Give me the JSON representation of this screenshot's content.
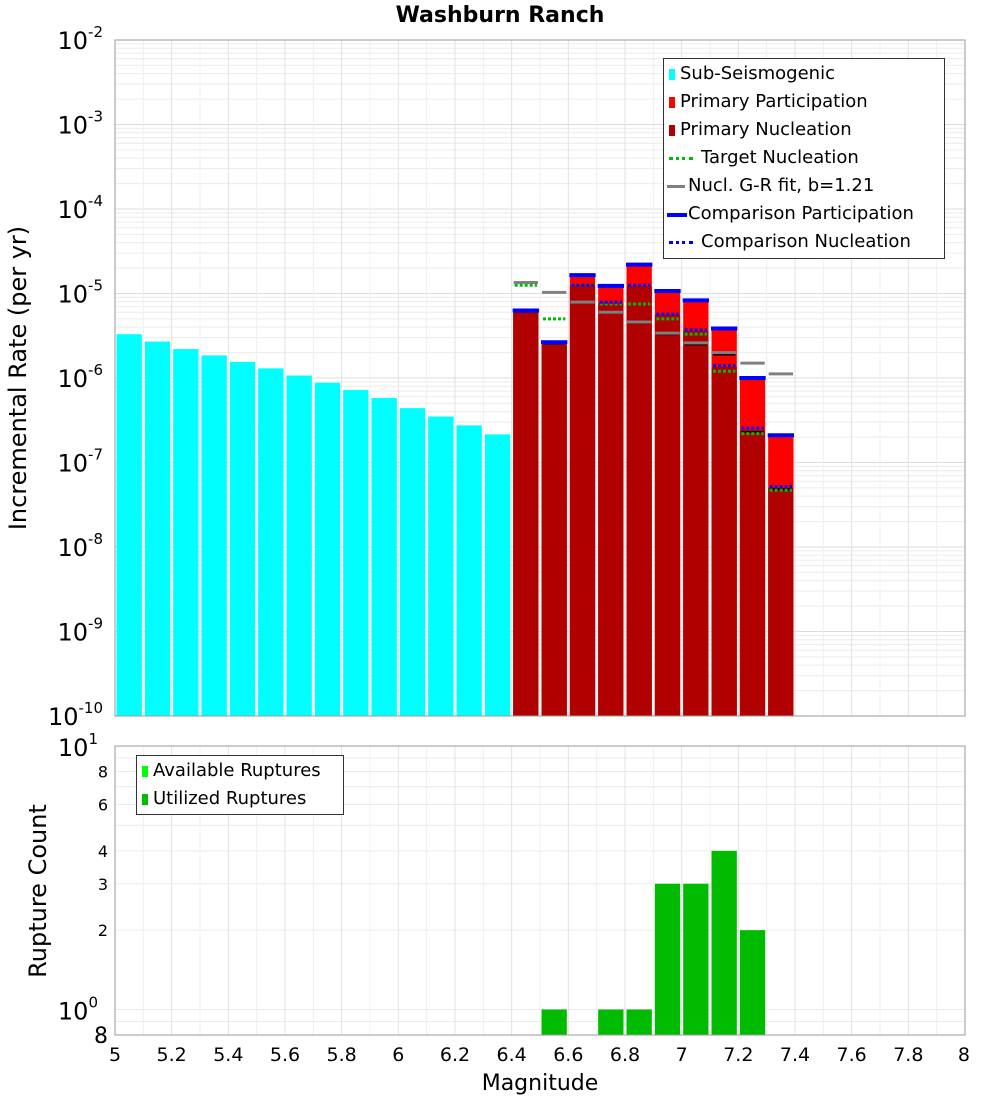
{
  "chart_data": [
    {
      "type": "bar",
      "title": "Washburn Ranch",
      "xlabel": "",
      "ylabel": "Incremental Rate (per yr)",
      "yscale": "log",
      "ylim": [
        1e-10,
        0.01
      ],
      "xlim": [
        5,
        8
      ],
      "y_tick_base": "10",
      "y_tick_exponents": [
        "-2",
        "-3",
        "-4",
        "-5",
        "-6",
        "-7",
        "-8",
        "-9",
        "-10"
      ],
      "bin_width": 0.1,
      "colors": {
        "sub_seismogenic": "#00ffff",
        "primary_participation": "#ff0000",
        "primary_nucleation": "#b00000",
        "target_nucleation": "#00bb00",
        "gr_fit": "#808080",
        "comparison_participation": "#0000ff",
        "comparison_nucleation": "#0000ff",
        "black_marker": "#000000"
      },
      "legend": [
        {
          "label": "Sub-Seismogenic",
          "style": "bar",
          "color": "#00ffff"
        },
        {
          "label": "Primary Participation",
          "style": "bar",
          "color": "#ff0000"
        },
        {
          "label": "Primary Nucleation",
          "style": "bar",
          "color": "#b00000"
        },
        {
          "label": "Target Nucleation",
          "style": "dotted",
          "color": "#00bb00"
        },
        {
          "label": "Nucl. G-R fit, b=1.21",
          "style": "solid",
          "color": "#808080"
        },
        {
          "label": "Comparison Participation",
          "style": "solid",
          "color": "#0000ff"
        },
        {
          "label": "Comparison Nucleation",
          "style": "dotted",
          "color": "#0000ff"
        }
      ],
      "series": [
        {
          "name": "Sub-Seismogenic",
          "x": [
            5.05,
            5.15,
            5.25,
            5.35,
            5.45,
            5.55,
            5.65,
            5.75,
            5.85,
            5.95,
            6.05,
            6.15,
            6.25,
            6.35
          ],
          "values": [
            3.3e-06,
            2.7e-06,
            2.2e-06,
            1.85e-06,
            1.55e-06,
            1.3e-06,
            1.07e-06,
            8.8e-07,
            7.2e-07,
            5.8e-07,
            4.4e-07,
            3.5e-07,
            2.75e-07,
            2.15e-07
          ]
        },
        {
          "name": "Primary Participation",
          "x": [
            6.45,
            6.55,
            6.65,
            6.75,
            6.85,
            6.95,
            7.05,
            7.15,
            7.25,
            7.35
          ],
          "values": [
            6e-06,
            2.5e-06,
            1.6e-05,
            1.18e-05,
            2.1e-05,
            1.03e-05,
            8e-06,
            3.7e-06,
            9.5e-07,
            2e-07
          ]
        },
        {
          "name": "Primary Nucleation",
          "x": [
            6.45,
            6.55,
            6.65,
            6.75,
            6.85,
            6.95,
            7.05,
            7.15,
            7.25,
            7.35
          ],
          "values": [
            6e-06,
            2.5e-06,
            1.25e-05,
            7.7e-06,
            1.23e-05,
            5.6e-06,
            3.6e-06,
            1.35e-06,
            2.4e-07,
            5e-08
          ]
        },
        {
          "name": "Target Nucleation",
          "x": [
            6.45,
            6.55,
            6.65,
            6.75,
            6.85,
            6.95,
            7.05,
            7.15,
            7.25,
            7.35
          ],
          "values": [
            1.25e-05,
            5e-06,
            1.25e-05,
            7.5e-06,
            7.5e-06,
            5e-06,
            3.3e-06,
            1.2e-06,
            2.2e-07,
            4.7e-08
          ]
        },
        {
          "name": "Nucl. G-R fit, b=1.21",
          "x": [
            6.45,
            6.55,
            6.65,
            6.75,
            6.85,
            6.95,
            7.05,
            7.15,
            7.25,
            7.35
          ],
          "values": [
            1.35e-05,
            1.03e-05,
            7.9e-06,
            6e-06,
            4.6e-06,
            3.4e-06,
            2.6e-06,
            2e-06,
            1.5e-06,
            1.12e-06
          ]
        },
        {
          "name": "Comparison Participation",
          "x": [
            6.45,
            6.55,
            6.65,
            6.75,
            6.85,
            6.95,
            7.05,
            7.15,
            7.25,
            7.35
          ],
          "values": [
            6.3e-06,
            2.65e-06,
            1.65e-05,
            1.23e-05,
            2.2e-05,
            1.07e-05,
            8.3e-06,
            3.85e-06,
            1e-06,
            2.1e-07
          ]
        },
        {
          "name": "Comparison Nucleation",
          "x": [
            6.45,
            6.55,
            6.65,
            6.75,
            6.85,
            6.95,
            7.05,
            7.15,
            7.25,
            7.35
          ],
          "values": [
            6.3e-06,
            2.65e-06,
            1.25e-05,
            7.9e-06,
            1.25e-05,
            5.7e-06,
            3.7e-06,
            1.4e-06,
            2.55e-07,
            5.2e-08
          ]
        },
        {
          "name": "black markers",
          "x": [
            6.45,
            6.55,
            6.65,
            6.75,
            6.85,
            6.95,
            7.05,
            7.15,
            7.25,
            7.35
          ],
          "values": [
            6.1e-06,
            2.55e-06,
            7.8e-06,
            5.9e-06,
            4.5e-06,
            3.3e-06,
            2.5e-06,
            1.9e-06,
            2.3e-07,
            4.8e-08
          ]
        }
      ]
    },
    {
      "type": "bar",
      "title": "",
      "xlabel": "Magnitude",
      "ylabel": "Rupture Count",
      "yscale": "log",
      "ylim": [
        0.8,
        10
      ],
      "xlim": [
        5,
        8
      ],
      "x_ticks": [
        "5",
        "5.2",
        "5.4",
        "5.6",
        "5.8",
        "6",
        "6.2",
        "6.4",
        "6.6",
        "6.8",
        "7",
        "7.2",
        "7.4",
        "7.6",
        "7.8",
        "8"
      ],
      "y_minor_ticks": [
        "8",
        "6",
        "4",
        "3",
        "2",
        "8"
      ],
      "y_major_ticks": [
        "10",
        "10"
      ],
      "y_major_exponents": [
        "1",
        "0"
      ],
      "legend": [
        {
          "label": "Available Ruptures",
          "style": "bar",
          "color": "#00ff00"
        },
        {
          "label": "Utilized Ruptures",
          "style": "bar",
          "color": "#00bb00"
        }
      ],
      "series": [
        {
          "name": "Utilized Ruptures",
          "x": [
            6.55,
            6.75,
            6.85,
            6.95,
            7.05,
            7.15,
            7.25
          ],
          "values": [
            1,
            1,
            1,
            3,
            3,
            4,
            2
          ]
        }
      ]
    }
  ]
}
